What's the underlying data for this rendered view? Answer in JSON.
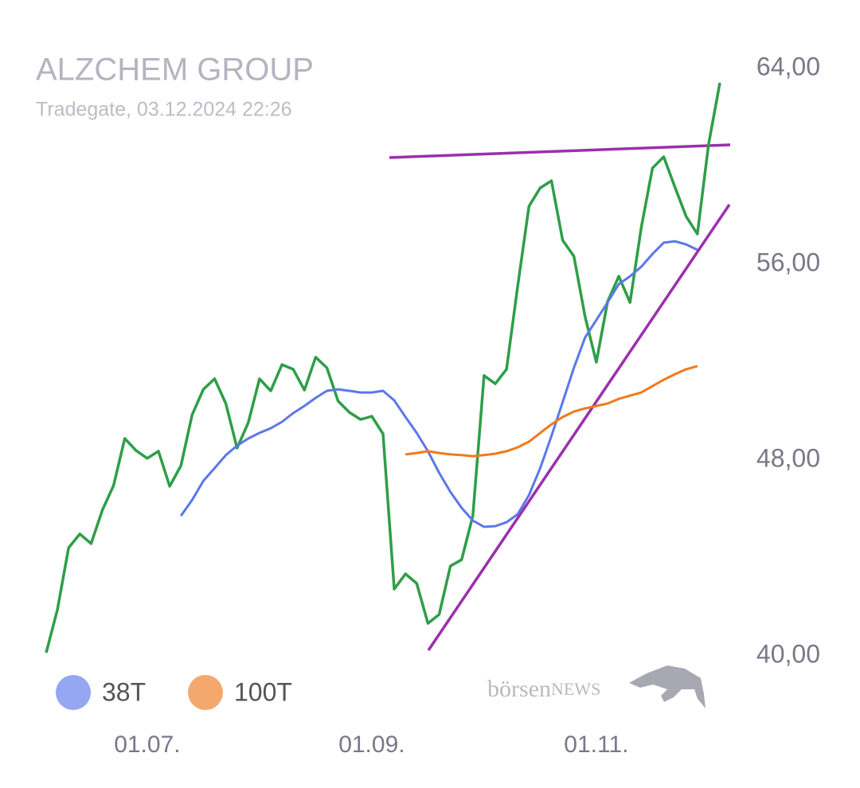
{
  "chart_data": {
    "type": "line",
    "title": "ALZCHEM GROUP",
    "subtitle": "Tradegate, 03.12.2024 22:26",
    "watermark": "börsenNEWS",
    "categories": [
      null,
      null,
      null,
      null,
      null,
      null,
      null,
      null,
      null,
      "01.07.",
      null,
      null,
      null,
      null,
      null,
      null,
      null,
      null,
      null,
      null,
      null,
      null,
      null,
      null,
      null,
      null,
      null,
      null,
      null,
      "01.09.",
      null,
      null,
      null,
      null,
      null,
      null,
      null,
      null,
      null,
      null,
      null,
      null,
      null,
      null,
      null,
      null,
      null,
      null,
      null,
      "01.11.",
      null,
      null,
      null,
      null,
      null,
      null,
      null,
      null,
      null,
      null,
      null
    ],
    "series": [
      {
        "color": "#2e9e48",
        "values": [
          40.13,
          41.89,
          44.42,
          44.98,
          44.59,
          45.95,
          46.96,
          48.88,
          48.39,
          48.07,
          48.36,
          46.93,
          47.77,
          49.85,
          50.89,
          51.32,
          50.31,
          48.49,
          49.53,
          51.32,
          50.83,
          51.9,
          51.71,
          50.86,
          52.2,
          51.77,
          50.41,
          49.95,
          49.66,
          49.79,
          49.07,
          42.73,
          43.35,
          42.96,
          41.33,
          41.69,
          43.67,
          43.93,
          45.72,
          51.45,
          51.12,
          51.71,
          55.12,
          58.37,
          59.12,
          59.41,
          56.98,
          56.33,
          53.85,
          52.0,
          54.47,
          55.51,
          54.44,
          57.5,
          59.93,
          60.39,
          59.15,
          57.95,
          57.24,
          60.91,
          63.41
        ]
      },
      {
        "name": "38T",
        "color": "#5b78e8",
        "values": [
          null,
          null,
          null,
          null,
          null,
          null,
          null,
          null,
          null,
          null,
          null,
          null,
          45.72,
          46.37,
          47.15,
          47.67,
          48.2,
          48.59,
          48.88,
          49.11,
          49.3,
          49.56,
          49.92,
          50.21,
          50.54,
          50.83,
          50.89,
          50.83,
          50.76,
          50.76,
          50.83,
          50.44,
          49.76,
          49.11,
          48.36,
          47.48,
          46.7,
          46.05,
          45.53,
          45.27,
          45.3,
          45.46,
          45.79,
          46.57,
          47.67,
          48.98,
          50.37,
          51.77,
          53.01,
          53.72,
          54.44,
          55.19,
          55.51,
          55.9,
          56.42,
          56.88,
          56.94,
          56.81,
          56.59,
          null,
          null
        ]
      },
      {
        "name": "100T",
        "color": "#f07a1e",
        "values": [
          null,
          null,
          null,
          null,
          null,
          null,
          null,
          null,
          null,
          null,
          null,
          null,
          null,
          null,
          null,
          null,
          null,
          null,
          null,
          null,
          null,
          null,
          null,
          null,
          null,
          null,
          null,
          null,
          null,
          null,
          null,
          null,
          48.23,
          48.29,
          48.36,
          48.29,
          48.23,
          48.2,
          48.16,
          48.2,
          48.26,
          48.36,
          48.52,
          48.75,
          49.11,
          49.46,
          49.76,
          49.98,
          50.11,
          50.21,
          50.31,
          50.5,
          50.63,
          50.76,
          51.02,
          51.28,
          51.51,
          51.71,
          51.84,
          null,
          null
        ]
      }
    ],
    "ylim": [
      40,
      64
    ],
    "yticks": [
      {
        "value": 40,
        "label": "40,00"
      },
      {
        "value": 48,
        "label": "48,00"
      },
      {
        "value": 56,
        "label": "56,00"
      },
      {
        "value": 64,
        "label": "64,00"
      }
    ],
    "grid": false
  }
}
